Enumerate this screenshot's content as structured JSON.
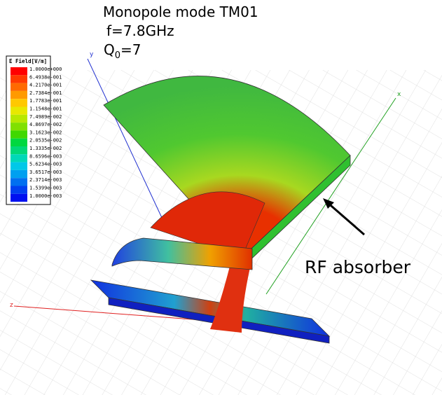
{
  "header": {
    "title": "Monopole mode TM01",
    "frequency": "f=7.8GHz",
    "q_symbol": "Q",
    "q_subscript": "0",
    "q_value": "=7"
  },
  "legend": {
    "title": "E Field[V/m]",
    "labels": [
      "1.0000e+000",
      "6.4938e-001",
      "4.2170e-001",
      "2.7384e-001",
      "1.7783e-001",
      "1.1548e-001",
      "7.4989e-002",
      "4.8697e-002",
      "3.1623e-002",
      "2.0535e-002",
      "1.3335e-002",
      "8.6596e-003",
      "5.6234e-003",
      "3.6517e-003",
      "2.3714e-003",
      "1.5399e-003",
      "1.0000e-003"
    ],
    "colors": [
      "#ff0000",
      "#ff3a00",
      "#ff6a00",
      "#ff9a00",
      "#ffc800",
      "#e8e800",
      "#b8e800",
      "#80e000",
      "#40d800",
      "#00d840",
      "#00d878",
      "#00d8b8",
      "#00c8e8",
      "#00a0f0",
      "#0070f0",
      "#0040f0",
      "#0010f0"
    ]
  },
  "axes": {
    "x": "x",
    "y": "y",
    "z": "z"
  },
  "annotation": "RF absorber"
}
